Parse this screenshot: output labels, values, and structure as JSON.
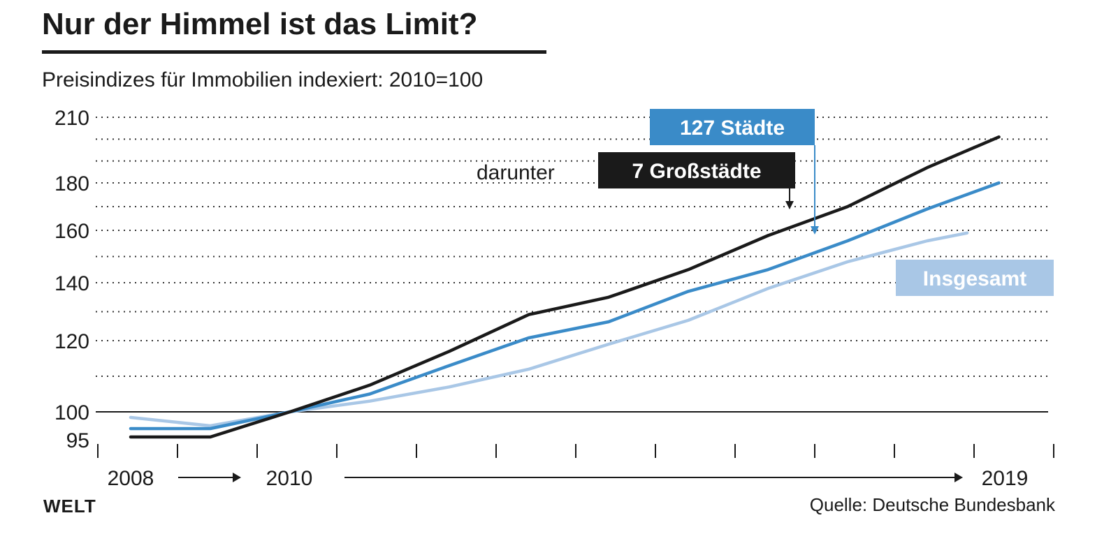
{
  "header": {
    "title": "Nur der Himmel ist das Limit?",
    "subtitle": "Preisindizes für Immobilien indexiert: 2010=100"
  },
  "footer": {
    "brand": "WELT",
    "source": "Quelle: Deutsche Bundesbank"
  },
  "colors": {
    "grossstaedte": "#1a1a1a",
    "staedte127": "#3a8bc8",
    "insgesamt": "#a9c7e6",
    "grid": "#333333"
  },
  "chart_data": {
    "type": "line",
    "title": "Nur der Himmel ist das Limit?",
    "subtitle": "Preisindizes für Immobilien indexiert: 2010=100",
    "ylim": [
      95,
      210
    ],
    "yticks": [
      "95",
      "100",
      "120",
      "140",
      "160",
      "180",
      "210"
    ],
    "y_tick_values": [
      95,
      100,
      120,
      140,
      160,
      180,
      210
    ],
    "x": [
      2008,
      2009,
      2010,
      2011,
      2012,
      2013,
      2014,
      2015,
      2016,
      2017,
      2018,
      2019
    ],
    "x_labels": [
      "2008",
      "2010",
      "2019"
    ],
    "x_label_values": [
      2008,
      2010,
      2019
    ],
    "grid": true,
    "series": [
      {
        "name": "7 Großstädte",
        "key": "grossstaedte",
        "x": [
          2008,
          2009,
          2010,
          2011,
          2012,
          2013,
          2014,
          2015,
          2016,
          2017,
          2018,
          2018.9
        ],
        "values": [
          95.5,
          95.5,
          100,
          107.5,
          117,
          129,
          135,
          145,
          158,
          170,
          187,
          201
        ]
      },
      {
        "name": "127 Städte",
        "key": "staedte127",
        "x": [
          2008,
          2009,
          2010,
          2011,
          2012,
          2013,
          2014,
          2015,
          2016,
          2017,
          2018,
          2018.9
        ],
        "values": [
          97,
          97,
          100,
          105,
          113,
          121,
          126.5,
          137,
          145,
          156,
          169,
          180
        ]
      },
      {
        "name": "Insgesamt",
        "key": "insgesamt",
        "x": [
          2008,
          2009,
          2010,
          2011,
          2012,
          2013,
          2014,
          2015,
          2016,
          2017,
          2018,
          2018.5
        ],
        "values": [
          99,
          97.5,
          100,
          103,
          107,
          112,
          119,
          127,
          138,
          148,
          156,
          159
        ]
      }
    ],
    "annotations": {
      "darunter": "darunter",
      "grossstaedte_label": "7 Großstädte",
      "staedte127_label": "127 Städte",
      "insgesamt_label": "Insgesamt"
    }
  }
}
